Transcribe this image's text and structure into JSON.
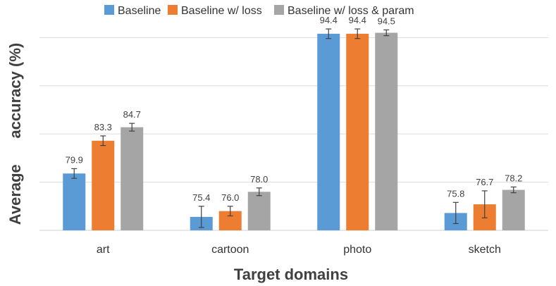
{
  "chart_data": {
    "type": "bar",
    "xlabel": "Target domains",
    "ylabel": "Average      accuracy (%)",
    "categories": [
      "art",
      "cartoon",
      "photo",
      "sketch"
    ],
    "ylim": [
      74,
      96
    ],
    "gridlines": [
      74,
      79,
      84,
      89,
      94
    ],
    "grid": true,
    "legend_position": "top",
    "series": [
      {
        "name": "Baseline",
        "color": "#5B9BD5",
        "values": [
          79.9,
          75.4,
          94.4,
          75.8
        ],
        "labels": [
          "79.9",
          "75.4",
          "94.4",
          "75.8"
        ],
        "errors": [
          0.5,
          1.1,
          0.5,
          1.1
        ]
      },
      {
        "name": "Baseline w/ loss",
        "color": "#ED7D31",
        "values": [
          83.3,
          76.0,
          94.4,
          76.7
        ],
        "labels": [
          "83.3",
          "76.0",
          "94.4",
          "76.7"
        ],
        "errors": [
          0.5,
          0.5,
          0.5,
          1.4
        ]
      },
      {
        "name": "Baseline w/ loss & param",
        "color": "#A5A5A5",
        "values": [
          84.7,
          78.0,
          94.5,
          78.2
        ],
        "labels": [
          "84.7",
          "78.0",
          "94.5",
          "78.2"
        ],
        "errors": [
          0.4,
          0.4,
          0.3,
          0.3
        ]
      }
    ]
  }
}
